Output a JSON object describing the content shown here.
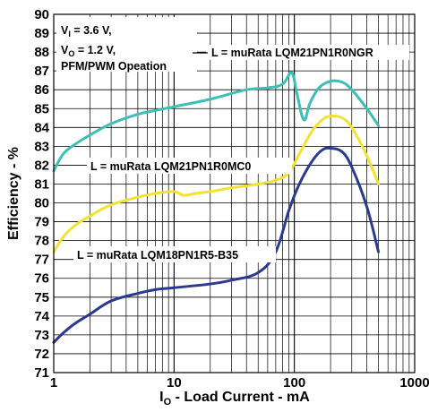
{
  "chart_data": {
    "type": "line",
    "title": "",
    "xlabel": "I_O - Load Current - mA",
    "xlabel_parts": {
      "main": "I",
      "sub": "O",
      "rest": " - Load Current - mA"
    },
    "ylabel": "Efficiency - %",
    "xscale": "log",
    "xlim": [
      1,
      1000
    ],
    "ylim": [
      71,
      90
    ],
    "x_ticks": [
      "1",
      "10",
      "100",
      "1000"
    ],
    "y_ticks": [
      "71",
      "72",
      "73",
      "74",
      "75",
      "76",
      "77",
      "78",
      "79",
      "80",
      "81",
      "82",
      "83",
      "84",
      "85",
      "86",
      "87",
      "88",
      "89",
      "90"
    ],
    "grid": true,
    "conditions": [
      {
        "main": "V",
        "sub": "I",
        "rest": " = 3.6 V,"
      },
      {
        "main": "V",
        "sub": "O",
        "rest": " = 1.2 V,"
      },
      {
        "main": "PFM/PWM Opeation",
        "sub": "",
        "rest": ""
      }
    ],
    "series": [
      {
        "name": "L = muRata LQM21PN1R0NGR",
        "color": "#3dbfb6",
        "x": [
          1,
          1.2,
          1.5,
          2,
          3,
          5,
          7,
          10,
          20,
          40,
          60,
          80,
          95,
          105,
          120,
          135,
          160,
          200,
          250,
          300,
          400,
          500
        ],
        "y": [
          81.7,
          82.6,
          83.1,
          83.6,
          84.2,
          84.7,
          84.9,
          85.1,
          85.5,
          86.0,
          86.1,
          86.3,
          86.9,
          85.8,
          84.4,
          85.3,
          86.1,
          86.45,
          86.4,
          86.0,
          85.0,
          84.1
        ]
      },
      {
        "name": "L = muRata LQM21PN1R0MC0",
        "color": "#f2e330",
        "x": [
          1,
          1.2,
          1.5,
          2,
          3,
          5,
          7,
          10,
          12,
          15,
          20,
          30,
          50,
          70,
          90,
          110,
          140,
          170,
          200,
          250,
          300,
          400,
          500
        ],
        "y": [
          77.4,
          78.2,
          78.8,
          79.3,
          79.9,
          80.3,
          80.5,
          80.6,
          80.4,
          80.5,
          80.6,
          80.8,
          81.0,
          81.2,
          81.6,
          82.6,
          83.8,
          84.4,
          84.6,
          84.5,
          84.0,
          82.5,
          81.0
        ]
      },
      {
        "name": "L = muRata LQM18PN1R5-B35",
        "color": "#2b3990",
        "x": [
          1,
          1.2,
          1.5,
          2,
          3,
          5,
          7,
          10,
          20,
          30,
          50,
          70,
          90,
          110,
          140,
          170,
          200,
          250,
          300,
          400,
          500
        ],
        "y": [
          72.6,
          73.1,
          73.6,
          74.1,
          74.8,
          75.2,
          75.4,
          75.5,
          75.7,
          75.9,
          76.3,
          77.4,
          79.6,
          81.0,
          82.2,
          82.8,
          82.9,
          82.7,
          81.9,
          79.8,
          77.4
        ]
      }
    ]
  }
}
